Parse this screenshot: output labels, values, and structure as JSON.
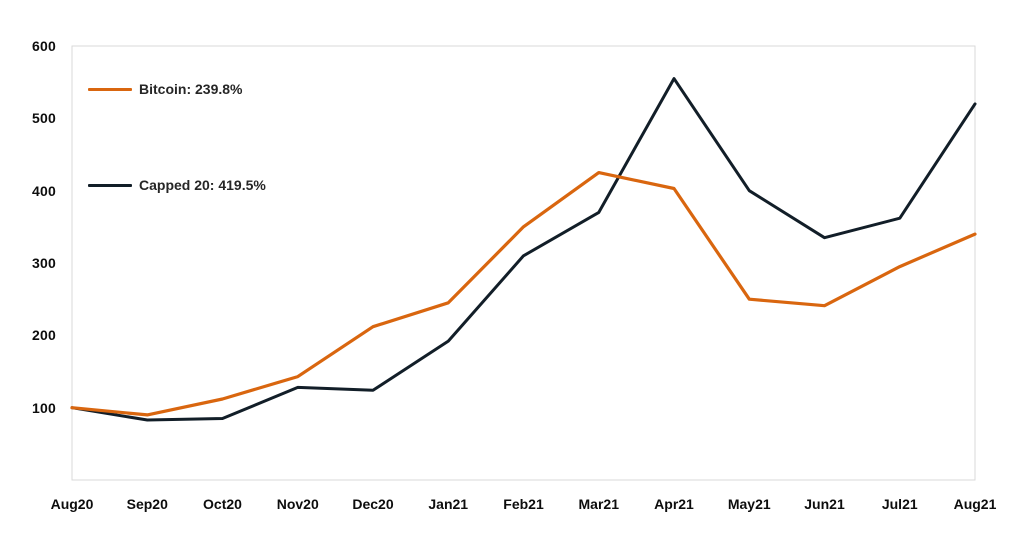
{
  "chart_data": {
    "type": "line",
    "title": "",
    "xlabel": "",
    "ylabel": "",
    "x": [
      "Aug20",
      "Sep20",
      "Oct20",
      "Nov20",
      "Dec20",
      "Jan21",
      "Feb21",
      "Mar21",
      "Apr21",
      "May21",
      "Jun21",
      "Jul21",
      "Aug21"
    ],
    "series": [
      {
        "name": "Bitcoin",
        "legend_label": "Bitcoin: 239.8%",
        "color": "#d9660f",
        "values": [
          100,
          90,
          112,
          143,
          212,
          245,
          350,
          425,
          403,
          250,
          241,
          295,
          340
        ]
      },
      {
        "name": "Capped 20",
        "legend_label": "Capped 20: 419.5%",
        "color": "#121e28",
        "values": [
          100,
          83,
          85,
          128,
          124,
          192,
          310,
          370,
          555,
          400,
          335,
          362,
          520
        ]
      }
    ],
    "ylim": [
      0,
      600
    ],
    "yticks": [
      100,
      200,
      300,
      400,
      500,
      600
    ],
    "grid": false,
    "legend_position": "inside-top-left",
    "plot_border_color": "#d9d9d9",
    "background_color": "#ffffff"
  }
}
